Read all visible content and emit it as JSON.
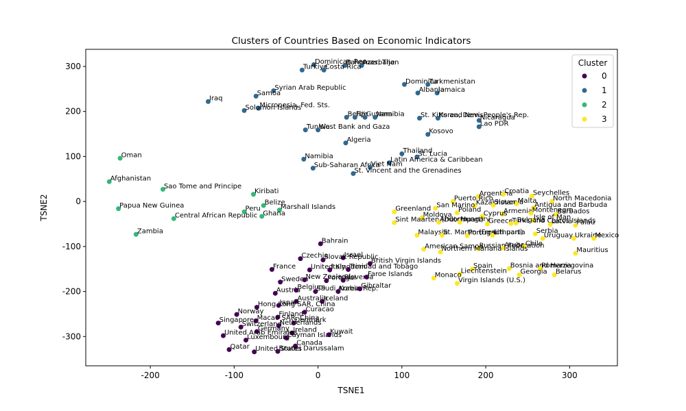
{
  "chart_data": {
    "type": "scatter",
    "title": "Clusters of Countries Based on Economic Indicators",
    "xlabel": "TSNE1",
    "ylabel": "TSNE2",
    "xlim": [
      -277,
      357
    ],
    "ylim": [
      -365,
      338
    ],
    "xticks": [
      -200,
      -100,
      0,
      100,
      200,
      300
    ],
    "yticks": [
      -300,
      -200,
      -100,
      0,
      100,
      200,
      300
    ],
    "grid": false,
    "legend": {
      "title": "Cluster",
      "placement": "top-right",
      "entries": [
        {
          "label": "0",
          "color": "#440154"
        },
        {
          "label": "1",
          "color": "#31688e"
        },
        {
          "label": "2",
          "color": "#35b779"
        },
        {
          "label": "3",
          "color": "#fde725"
        }
      ]
    },
    "series": [
      {
        "cluster": "0",
        "color": "#440154",
        "points": [
          {
            "x": 3,
            "y": -94,
            "label": "Bahrain"
          },
          {
            "x": -21,
            "y": -127,
            "label": "Czechia"
          },
          {
            "x": 30,
            "y": -125,
            "label": "Israel"
          },
          {
            "x": 6,
            "y": -130,
            "label": "Slovak Republic"
          },
          {
            "x": 62,
            "y": -138,
            "label": "British Virgin Islands"
          },
          {
            "x": -55,
            "y": -151,
            "label": "France"
          },
          {
            "x": -10,
            "y": -152,
            "label": "United Kingdom"
          },
          {
            "x": 14,
            "y": -152,
            "label": "Italy"
          },
          {
            "x": 36,
            "y": -151,
            "label": "Trinidad and Tobago"
          },
          {
            "x": -45,
            "y": -179,
            "label": "Sweden"
          },
          {
            "x": -16,
            "y": -174,
            "label": "New Zealand"
          },
          {
            "x": 10,
            "y": -176,
            "label": "Portugal"
          },
          {
            "x": 30,
            "y": -175,
            "label": "Slovenia"
          },
          {
            "x": 58,
            "y": -168,
            "label": "Faroe Islands"
          },
          {
            "x": -51,
            "y": -204,
            "label": "Austria"
          },
          {
            "x": -26,
            "y": -197,
            "label": "Belgium"
          },
          {
            "x": -3,
            "y": -200,
            "label": "Saudi Arabia"
          },
          {
            "x": 24,
            "y": -200,
            "label": "Korea, Rep."
          },
          {
            "x": 50,
            "y": -194,
            "label": "Gibraltar"
          },
          {
            "x": -26,
            "y": -222,
            "label": "Australia"
          },
          {
            "x": 5,
            "y": -222,
            "label": "Iceland"
          },
          {
            "x": -73,
            "y": -235,
            "label": "Hong Kong SAR, China"
          },
          {
            "x": -47,
            "y": -231,
            "label": "Japan"
          },
          {
            "x": -16,
            "y": -246,
            "label": "Curacao"
          },
          {
            "x": -97,
            "y": -251,
            "label": "Norway"
          },
          {
            "x": -48,
            "y": -257,
            "label": "Finland"
          },
          {
            "x": -74,
            "y": -265,
            "label": "Macao SAR, China"
          },
          {
            "x": -119,
            "y": -270,
            "label": "Singapore"
          },
          {
            "x": -29,
            "y": -270,
            "label": "Denmark"
          },
          {
            "x": -92,
            "y": -279,
            "label": "Switzerland"
          },
          {
            "x": -47,
            "y": -276,
            "label": "Netherlands"
          },
          {
            "x": -73,
            "y": -289,
            "label": "Germany"
          },
          {
            "x": -31,
            "y": -292,
            "label": "Ireland"
          },
          {
            "x": -113,
            "y": -298,
            "label": "United Arab Emirates"
          },
          {
            "x": -38,
            "y": -303,
            "label": "Cayman Islands"
          },
          {
            "x": 13,
            "y": -296,
            "label": "Kuwait"
          },
          {
            "x": -86,
            "y": -308,
            "label": "Luxembourg"
          },
          {
            "x": -27,
            "y": -321,
            "label": "Canada"
          },
          {
            "x": -106,
            "y": -329,
            "label": "Qatar"
          },
          {
            "x": -76,
            "y": -334,
            "label": "United States"
          },
          {
            "x": -48,
            "y": -333,
            "label": "Brunei Darussalam"
          }
        ]
      },
      {
        "cluster": "1",
        "color": "#31688e",
        "points": [
          {
            "x": -5,
            "y": 304,
            "label": "Dominican Rep."
          },
          {
            "x": 32,
            "y": 302,
            "label": "Bahamas, The"
          },
          {
            "x": 52,
            "y": 302,
            "label": "Azerbaijan"
          },
          {
            "x": -19,
            "y": 292,
            "label": "Turkiye"
          },
          {
            "x": 7,
            "y": 292,
            "label": "Costa Rica"
          },
          {
            "x": 103,
            "y": 260,
            "label": "Dominica"
          },
          {
            "x": 131,
            "y": 260,
            "label": "Turkmenistan"
          },
          {
            "x": 119,
            "y": 241,
            "label": "Albania"
          },
          {
            "x": 142,
            "y": 241,
            "label": "Jamaica"
          },
          {
            "x": -53,
            "y": 246,
            "label": "Syrian Arab Republic"
          },
          {
            "x": -74,
            "y": 234,
            "label": "Samoa"
          },
          {
            "x": -131,
            "y": 222,
            "label": "Iraq"
          },
          {
            "x": -71,
            "y": 207,
            "label": "Micronesia, Fed. Sts."
          },
          {
            "x": -88,
            "y": 202,
            "label": "Solomon Islands"
          },
          {
            "x": 34,
            "y": 187,
            "label": "Belize"
          },
          {
            "x": 44,
            "y": 187,
            "label": "Fiji"
          },
          {
            "x": 56,
            "y": 187,
            "label": "Guyana"
          },
          {
            "x": 68,
            "y": 187,
            "label": "Namibia"
          },
          {
            "x": 121,
            "y": 185,
            "label": "St. Kitts and Nevis"
          },
          {
            "x": 143,
            "y": 185,
            "label": "Korea, Dem. People's Rep."
          },
          {
            "x": 192,
            "y": 180,
            "label": "Nicaragua"
          },
          {
            "x": -15,
            "y": 159,
            "label": "Tunisia"
          },
          {
            "x": 0,
            "y": 159,
            "label": "West Bank and Gaza"
          },
          {
            "x": 131,
            "y": 149,
            "label": "Kosovo"
          },
          {
            "x": 192,
            "y": 166,
            "label": "Lao PDR"
          },
          {
            "x": 33,
            "y": 130,
            "label": "Algeria"
          },
          {
            "x": 100,
            "y": 106,
            "label": "Thailand"
          },
          {
            "x": 118,
            "y": 99,
            "label": "St. Lucia"
          },
          {
            "x": -17,
            "y": 94,
            "label": "Namibia"
          },
          {
            "x": 85,
            "y": 86,
            "label": "Latin America & Caribbean"
          },
          {
            "x": -6,
            "y": 74,
            "label": "Sub-Saharan Africa"
          },
          {
            "x": 62,
            "y": 76,
            "label": "Viet Nam"
          },
          {
            "x": 42,
            "y": 62,
            "label": "St. Vincent and the Grenadines"
          }
        ]
      },
      {
        "cluster": "2",
        "color": "#35b779",
        "points": [
          {
            "x": -236,
            "y": 96,
            "label": "Oman"
          },
          {
            "x": -249,
            "y": 44,
            "label": "Afghanistan"
          },
          {
            "x": -185,
            "y": 27,
            "label": "Sao Tome and Principe"
          },
          {
            "x": -77,
            "y": 16,
            "label": "Kiribati"
          },
          {
            "x": -65,
            "y": -9,
            "label": "Belize"
          },
          {
            "x": -238,
            "y": -16,
            "label": "Papua New Guinea"
          },
          {
            "x": -88,
            "y": -23,
            "label": "Peru"
          },
          {
            "x": -46,
            "y": -19,
            "label": "Marshall Islands"
          },
          {
            "x": -172,
            "y": -38,
            "label": "Central African Republic"
          },
          {
            "x": -67,
            "y": -33,
            "label": "Ghana"
          },
          {
            "x": -217,
            "y": -73,
            "label": "Zambia"
          }
        ]
      },
      {
        "cluster": "3",
        "color": "#fde725",
        "points": [
          {
            "x": 191,
            "y": 11,
            "label": "Argentina"
          },
          {
            "x": 221,
            "y": 16,
            "label": "Croatia"
          },
          {
            "x": 255,
            "y": 12,
            "label": "Seychelles"
          },
          {
            "x": 161,
            "y": 0,
            "label": "Puerto Rico"
          },
          {
            "x": 279,
            "y": 0,
            "label": "North Macedonia"
          },
          {
            "x": 187,
            "y": -9,
            "label": "Kazakhstan"
          },
          {
            "x": 209,
            "y": -8,
            "label": "Slovenia"
          },
          {
            "x": 237,
            "y": -5,
            "label": "Malta"
          },
          {
            "x": 140,
            "y": -15,
            "label": "San Marino"
          },
          {
            "x": 91,
            "y": -23,
            "label": "Greenland"
          },
          {
            "x": 257,
            "y": -14,
            "label": "Antigua and Barbuda"
          },
          {
            "x": 166,
            "y": -25,
            "label": "Poland"
          },
          {
            "x": 220,
            "y": -28,
            "label": "Armenia"
          },
          {
            "x": 196,
            "y": -33,
            "label": "Cyprus"
          },
          {
            "x": 254,
            "y": -26,
            "label": "Montenegro"
          },
          {
            "x": 284,
            "y": -29,
            "label": "Barbados"
          },
          {
            "x": 124,
            "y": -36,
            "label": "Moldova"
          },
          {
            "x": 91,
            "y": -47,
            "label": "Sint Maarten (Dutch part)"
          },
          {
            "x": 144,
            "y": -46,
            "label": "Andorra"
          },
          {
            "x": 169,
            "y": -46,
            "label": "Hungary"
          },
          {
            "x": 202,
            "y": -50,
            "label": "Greece"
          },
          {
            "x": 230,
            "y": -49,
            "label": "Turks and Caicos Islands"
          },
          {
            "x": 256,
            "y": -42,
            "label": "Isle of Man"
          },
          {
            "x": 236,
            "y": -48,
            "label": "Bulgaria"
          },
          {
            "x": 277,
            "y": -51,
            "label": "Latvia"
          },
          {
            "x": 307,
            "y": -53,
            "label": "Palau"
          },
          {
            "x": 118,
            "y": -75,
            "label": "Malaysia"
          },
          {
            "x": 148,
            "y": -75,
            "label": "St. Martin (French part)"
          },
          {
            "x": 178,
            "y": -76,
            "label": "Portugal"
          },
          {
            "x": 208,
            "y": -75,
            "label": "Lithuania"
          },
          {
            "x": 259,
            "y": -72,
            "label": "Serbia"
          },
          {
            "x": 268,
            "y": -82,
            "label": "Uruguay"
          },
          {
            "x": 305,
            "y": -82,
            "label": "Ukraine"
          },
          {
            "x": 329,
            "y": -82,
            "label": "Mexico"
          },
          {
            "x": 126,
            "y": -106,
            "label": "American Samoa"
          },
          {
            "x": 191,
            "y": -105,
            "label": "Russian Federation"
          },
          {
            "x": 221,
            "y": -103,
            "label": "Aruba"
          },
          {
            "x": 246,
            "y": -100,
            "label": "Chile"
          },
          {
            "x": 146,
            "y": -112,
            "label": "Northern Mariana Islands"
          },
          {
            "x": 307,
            "y": -115,
            "label": "Mauritius"
          },
          {
            "x": 228,
            "y": -149,
            "label": "Bosnia and Herzegovina"
          },
          {
            "x": 265,
            "y": -149,
            "label": "Romania"
          },
          {
            "x": 184,
            "y": -150,
            "label": "Spain"
          },
          {
            "x": 169,
            "y": -161,
            "label": "Liechtenstein"
          },
          {
            "x": 240,
            "y": -163,
            "label": "Georgia"
          },
          {
            "x": 282,
            "y": -163,
            "label": "Belarus"
          },
          {
            "x": 138,
            "y": -170,
            "label": "Monaco"
          },
          {
            "x": 166,
            "y": -182,
            "label": "Virgin Islands (U.S.)"
          }
        ]
      }
    ]
  }
}
